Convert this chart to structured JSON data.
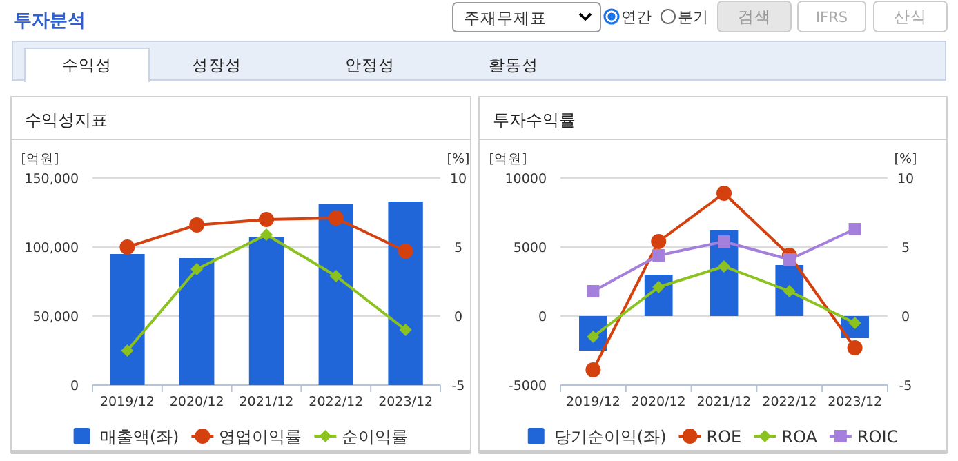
{
  "chart_data": [
    {
      "type": "bar",
      "title": "수익성지표",
      "ylabel": "[억원]",
      "y2label": "[%]",
      "categories": [
        "2019/12",
        "2020/12",
        "2021/12",
        "2022/12",
        "2023/12"
      ],
      "series": [
        {
          "name": "매출액(좌)",
          "color": "#2166d9",
          "values": [
            95000,
            92000,
            107000,
            131000,
            133000
          ]
        },
        {
          "name": "영업이익률",
          "type": "line",
          "axis": "y2",
          "marker": "circle",
          "color": "#d4410f",
          "values": [
            5.0,
            6.6,
            7.0,
            7.1,
            4.7
          ]
        },
        {
          "name": "순이익률",
          "type": "line",
          "axis": "y2",
          "marker": "diamond",
          "color": "#8cc21f",
          "values": [
            -2.5,
            3.4,
            5.9,
            2.9,
            -1.0
          ]
        }
      ],
      "ylim": [
        0,
        150000
      ],
      "yticks": [
        0,
        {
          "value": 50000,
          "label": "50,000"
        },
        {
          "value": 100000,
          "label": "100,000"
        },
        {
          "value": 150000,
          "label": "150,000"
        }
      ],
      "y2lim": [
        -5,
        10
      ],
      "y2ticks": [
        -5,
        0,
        5,
        10
      ],
      "grid": "y",
      "legend": "bottom",
      "annotations": [
        "투자분석",
        "주재무제표",
        "연간",
        "분기",
        "검색",
        "IFRS",
        "산식",
        "수익성",
        "성장성",
        "안정성",
        "활동성"
      ]
    },
    {
      "type": "bar",
      "title": "투자수익률",
      "ylabel": "[억원]",
      "y2label": "[%]",
      "categories": [
        "2019/12",
        "2020/12",
        "2021/12",
        "2022/12",
        "2023/12"
      ],
      "series": [
        {
          "name": "당기순이익(좌)",
          "color": "#2166d9",
          "values": [
            -2500,
            3000,
            6200,
            3700,
            -1600
          ]
        },
        {
          "name": "ROE",
          "type": "line",
          "axis": "y2",
          "marker": "circle",
          "color": "#d4410f",
          "values": [
            -3.9,
            5.4,
            8.9,
            4.4,
            -2.3
          ]
        },
        {
          "name": "ROA",
          "type": "line",
          "axis": "y2",
          "marker": "diamond",
          "color": "#8cc21f",
          "values": [
            -1.5,
            2.1,
            3.6,
            1.8,
            -0.5
          ]
        },
        {
          "name": "ROIC",
          "type": "line",
          "axis": "y2",
          "marker": "square",
          "color": "#a57fdc",
          "values": [
            1.8,
            4.4,
            5.4,
            4.1,
            6.3
          ]
        }
      ],
      "ylim": [
        -5000,
        10000
      ],
      "yticks": [
        -5000,
        0,
        5000,
        10000
      ],
      "y2lim": [
        -5,
        10
      ],
      "y2ticks": [
        -5,
        0,
        5,
        10
      ],
      "grid": "y",
      "legend": "bottom"
    }
  ]
}
